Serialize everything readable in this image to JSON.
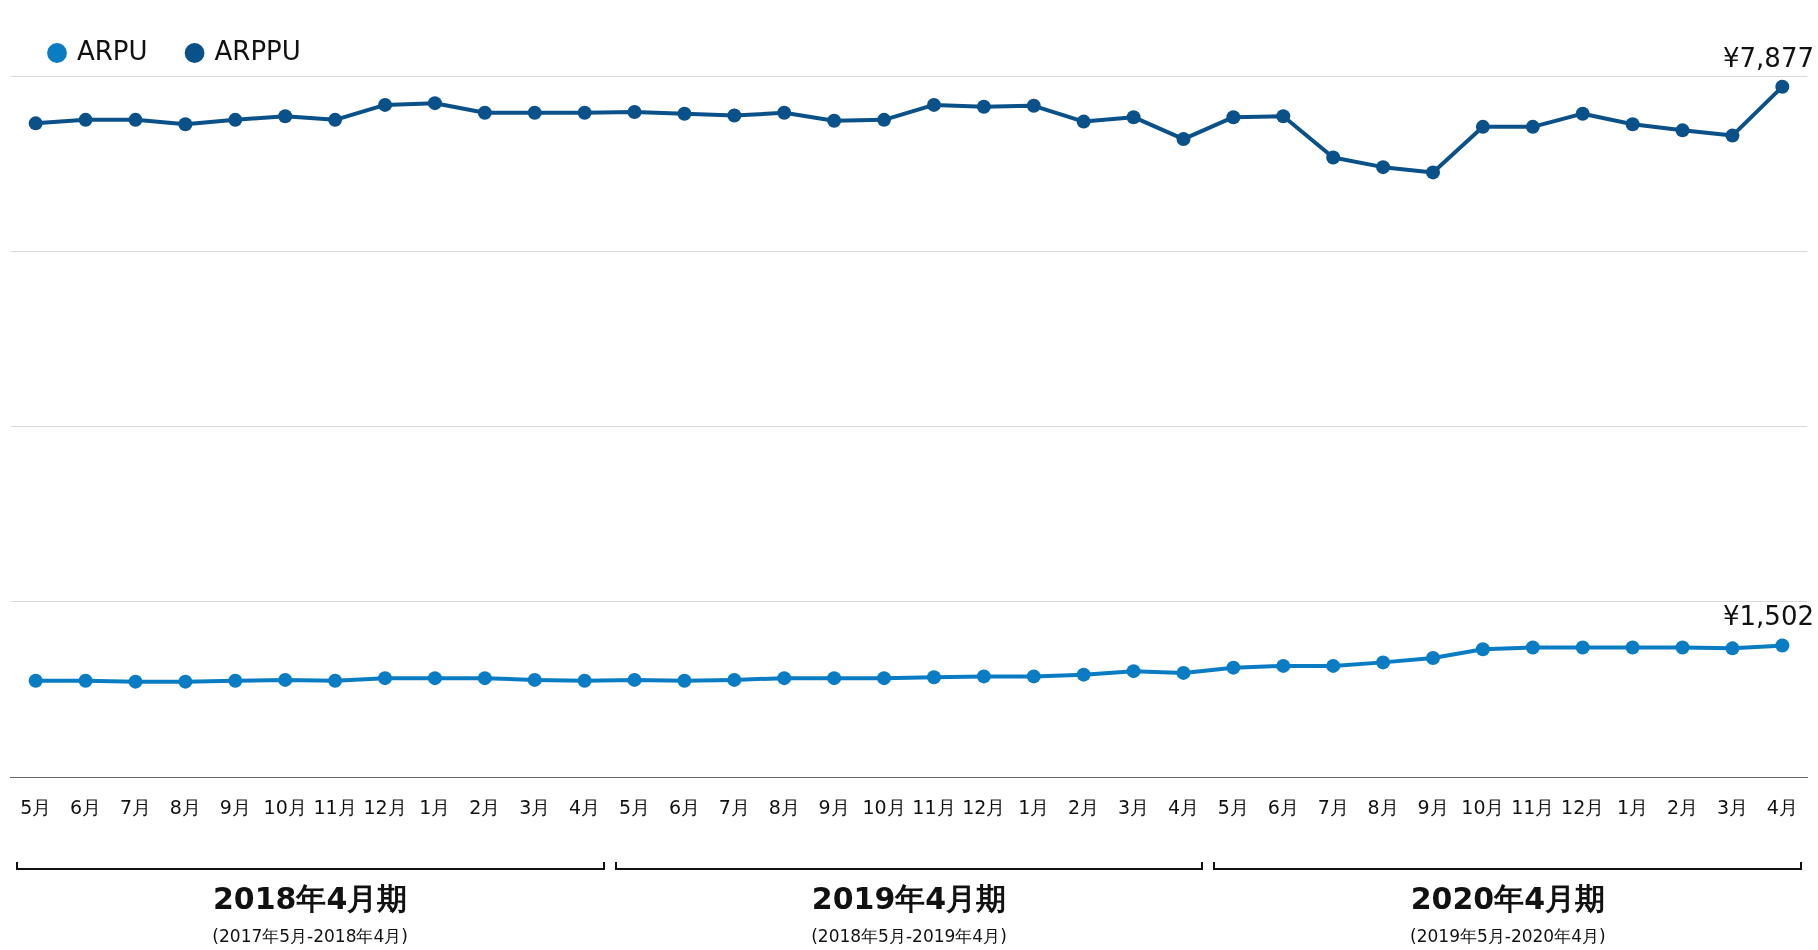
{
  "chart_data": {
    "type": "line",
    "categories": [
      "5月",
      "6月",
      "7月",
      "8月",
      "9月",
      "10月",
      "11月",
      "12月",
      "1月",
      "2月",
      "3月",
      "4月",
      "5月",
      "6月",
      "7月",
      "8月",
      "9月",
      "10月",
      "11月",
      "12月",
      "1月",
      "2月",
      "3月",
      "4月",
      "5月",
      "6月",
      "7月",
      "8月",
      "9月",
      "10月",
      "11月",
      "12月",
      "1月",
      "2月",
      "3月",
      "4月"
    ],
    "series": [
      {
        "name": "ARPU",
        "color": "#0a7cc4",
        "values": [
          1100,
          1100,
          1090,
          1090,
          1100,
          1110,
          1100,
          1130,
          1130,
          1130,
          1110,
          1100,
          1110,
          1100,
          1110,
          1130,
          1130,
          1130,
          1140,
          1150,
          1150,
          1170,
          1210,
          1190,
          1250,
          1270,
          1270,
          1310,
          1360,
          1460,
          1480,
          1480,
          1480,
          1480,
          1470,
          1502
        ],
        "value_labels": [
          null,
          null,
          null,
          null,
          null,
          null,
          null,
          null,
          null,
          null,
          null,
          null,
          null,
          null,
          null,
          null,
          null,
          null,
          null,
          null,
          null,
          null,
          null,
          null,
          null,
          null,
          null,
          null,
          null,
          null,
          null,
          null,
          null,
          null,
          null,
          "¥1,502"
        ]
      },
      {
        "name": "ARPPU",
        "color": "#0a5189",
        "values": [
          7460,
          7500,
          7500,
          7450,
          7500,
          7540,
          7500,
          7670,
          7690,
          7580,
          7580,
          7580,
          7590,
          7570,
          7550,
          7580,
          7490,
          7500,
          7670,
          7650,
          7660,
          7480,
          7530,
          7280,
          7530,
          7540,
          7070,
          6960,
          6900,
          7420,
          7420,
          7570,
          7450,
          7380,
          7320,
          7877
        ],
        "value_labels": [
          null,
          null,
          null,
          null,
          null,
          null,
          null,
          null,
          null,
          null,
          null,
          null,
          null,
          null,
          null,
          null,
          null,
          null,
          null,
          null,
          null,
          null,
          null,
          null,
          null,
          null,
          null,
          null,
          null,
          null,
          null,
          null,
          null,
          null,
          null,
          "¥7,877"
        ]
      }
    ],
    "ylim": [
      0,
      8000
    ],
    "yticks": [
      {
        "value": 0,
        "label": null
      },
      {
        "value": 2000,
        "label": null
      },
      {
        "value": 4000,
        "label": null
      },
      {
        "value": 6000,
        "label": null
      },
      {
        "value": 8000,
        "label": null
      }
    ],
    "tick_labels": "x",
    "grid": "y",
    "legend": "top left",
    "marker": "circle",
    "line_style": "solid",
    "annotations": [
      "2018年4月期",
      "(2017年5月-2018年4月)",
      "2019年4月期",
      "(2018年5月-2019年4月)",
      "2020年4月期",
      "(2019年5月-2020年4月)"
    ]
  }
}
